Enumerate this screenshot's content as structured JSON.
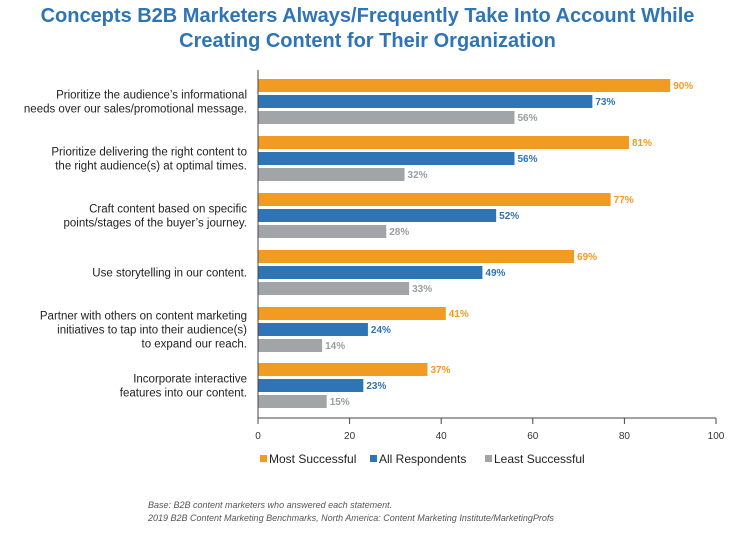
{
  "title_line1": "Concepts B2B Marketers Always/Frequently Take Into Account While",
  "title_line2": "Creating Content for Their Organization",
  "footnote_base": "Base: B2B content marketers who answered each statement.",
  "footnote_source": "2019 B2B Content Marketing Benchmarks, North America: Content Marketing Institute/MarketingProfs",
  "colors": {
    "title": "#2f74b5",
    "most": "#f29b22",
    "all": "#2f74b5",
    "least": "#a2a5a8"
  },
  "chart_data": {
    "type": "bar",
    "orientation": "horizontal",
    "categories": [
      [
        "Prioritize the audience’s informational",
        "needs over our sales/promotional message."
      ],
      [
        "Prioritize delivering the right content to",
        "the right audience(s) at optimal times."
      ],
      [
        "Craft content based on specific",
        "points/stages of the buyer’s journey."
      ],
      [
        "Use storytelling in our content."
      ],
      [
        "Partner with others on content marketing",
        "initiatives to tap into their audience(s)",
        "to expand our reach."
      ],
      [
        "Incorporate interactive",
        "features into our content."
      ]
    ],
    "series": [
      {
        "name": "Most Successful",
        "color": "#f29b22",
        "values": [
          90,
          81,
          77,
          69,
          41,
          37
        ]
      },
      {
        "name": "All Respondents",
        "color": "#2f74b5",
        "values": [
          73,
          56,
          52,
          49,
          24,
          23
        ]
      },
      {
        "name": "Least Successful",
        "color": "#a2a5a8",
        "values": [
          56,
          32,
          28,
          33,
          14,
          15
        ]
      }
    ],
    "value_suffix": "%",
    "xlim": [
      0,
      100
    ],
    "xticks": [
      0,
      20,
      40,
      60,
      80,
      100
    ],
    "grid": false,
    "legend_position": "bottom"
  }
}
